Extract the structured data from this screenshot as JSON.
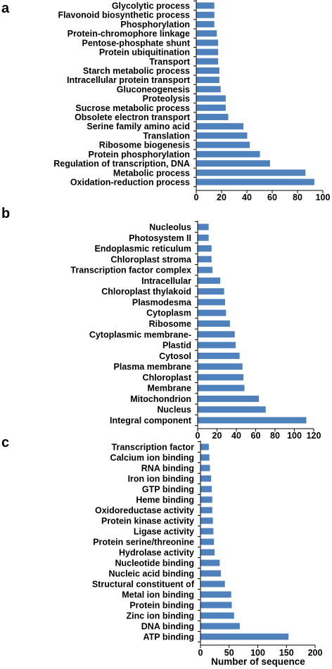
{
  "colors": {
    "bar": "#4f81bd",
    "axis": "#000000",
    "background": "#ffffff"
  },
  "chart_data": [
    {
      "type": "bar",
      "orientation": "horizontal",
      "panel": "a",
      "xlim": [
        0,
        100
      ],
      "xticks": [
        0,
        20,
        40,
        60,
        80,
        100
      ],
      "xlabel": "",
      "categories": [
        "Glycolytic process",
        "Flavonoid biosynthetic process",
        "Phosphorylation",
        "Protein-chromophore linkage",
        "Pentose-phosphate shunt",
        "Protein ubiquitination",
        "Transport",
        "Starch metabolic process",
        "Intracellular protein transport",
        "Gluconeogenesis",
        "Proteolysis",
        "Sucrose metabolic process",
        "Obsolete electron transport",
        "Serine family amino acid",
        "Translation",
        "Ribosome biogenesis",
        "Protein phosphorylation",
        "Regulation of transcription, DNA",
        "Metabolic process",
        "Oxidation-reduction process"
      ],
      "values": [
        14,
        14,
        14,
        16,
        17,
        17,
        17,
        18,
        18,
        19,
        23,
        23,
        25,
        37,
        40,
        42,
        50,
        58,
        86,
        93
      ]
    },
    {
      "type": "bar",
      "orientation": "horizontal",
      "panel": "b",
      "xlim": [
        0,
        120
      ],
      "xticks": [
        0,
        20,
        40,
        60,
        80,
        100,
        120
      ],
      "xlabel": "",
      "categories": [
        "Nucleolus",
        "Photosystem II",
        "Endoplasmic reticulum",
        "Chloroplast stroma",
        "Transcription factor complex",
        "Intracellular",
        "Chloroplast thylakoid",
        "Plasmodesma",
        "Cytoplasm",
        "Ribosome",
        "Cytoplasmic membrane-",
        "Plastid",
        "Cytosol",
        "Plasma membrane",
        "Chloroplast",
        "Membrane",
        "Mitochondrion",
        "Nucleus",
        "Integral component"
      ],
      "values": [
        11,
        11,
        14,
        14,
        15,
        23,
        27,
        28,
        29,
        33,
        38,
        39,
        43,
        46,
        47,
        48,
        63,
        70,
        112
      ]
    },
    {
      "type": "bar",
      "orientation": "horizontal",
      "panel": "c",
      "xlim": [
        0,
        200
      ],
      "xticks": [
        0,
        50,
        100,
        150,
        200
      ],
      "xlabel": "Number of sequence",
      "categories": [
        "Transcription factor",
        "Calcium ion binding",
        "RNA binding",
        "Iron ion binding",
        "GTP binding",
        "Heme binding",
        "Oxidoreductase activity",
        "Protein kinase activity",
        "Ligase activity",
        "Protein serine/threonine",
        "Hydrolase activity",
        "Nucleotide binding",
        "Nucleic acid binding",
        "Structural constituent of",
        "Metal ion binding",
        "Protein binding",
        "Zinc ion binding",
        "DNA binding",
        "ATP binding"
      ],
      "values": [
        14,
        15,
        16,
        18,
        19,
        20,
        20,
        21,
        22,
        23,
        24,
        33,
        35,
        42,
        53,
        54,
        58,
        68,
        153
      ]
    }
  ]
}
